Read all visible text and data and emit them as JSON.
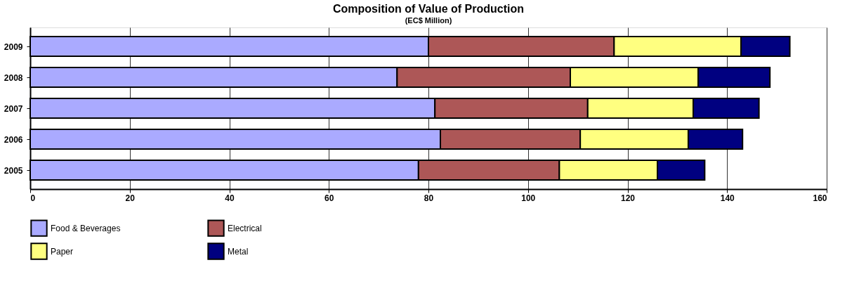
{
  "chart_data": {
    "type": "bar",
    "orientation": "horizontal",
    "stacked": true,
    "title": "Composition of Value of Production",
    "subtitle": "(EC$ Million)",
    "categories": [
      "2009",
      "2008",
      "2007",
      "2006",
      "2005"
    ],
    "series": [
      {
        "name": "Food & Beverages",
        "color": "#aaaaff",
        "values": [
          80.0,
          73.7,
          81.3,
          82.4,
          78.0
        ]
      },
      {
        "name": "Electrical",
        "color": "#ad5757",
        "values": [
          37.3,
          34.8,
          30.7,
          28.1,
          28.3
        ]
      },
      {
        "name": "Paper",
        "color": "#ffff80",
        "values": [
          25.5,
          25.7,
          21.2,
          21.7,
          19.7
        ]
      },
      {
        "name": "Metal",
        "color": "#000080",
        "values": [
          9.8,
          14.4,
          13.2,
          10.9,
          9.5
        ]
      }
    ],
    "xlim": [
      0,
      160
    ],
    "xticks": [
      0,
      20,
      40,
      60,
      80,
      100,
      120,
      140,
      160
    ],
    "grid": "x",
    "legend": "bottom"
  }
}
